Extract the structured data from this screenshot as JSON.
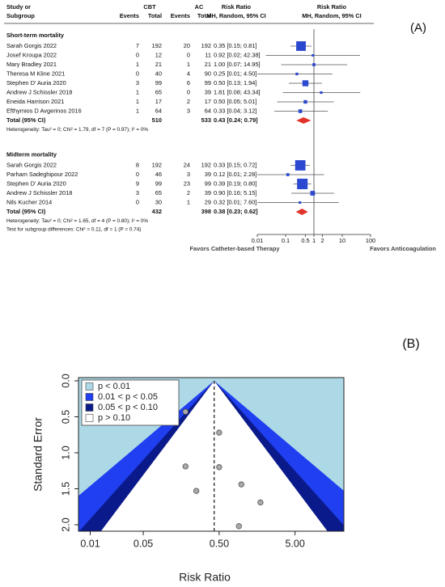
{
  "chart_data": [
    {
      "type": "forest",
      "panel_label": "(A)",
      "headers": {
        "study": "Study or",
        "subgroup": "Subgroup",
        "cbt": "CBT",
        "ac": "AC",
        "events": "Events",
        "total": "Total",
        "rr": "Risk Ratio",
        "method": "MH, Random, 95% CI"
      },
      "groups": [
        {
          "name": "Short-term mortality",
          "studies": [
            {
              "name": "Sarah Gorgis 2022",
              "cbt_events": 7,
              "cbt_total": 192,
              "ac_events": 20,
              "ac_total": 192,
              "rr": 0.35,
              "ci_lower": 0.15,
              "ci_upper": 0.81,
              "label": "0.35 [0.15; 0.81]"
            },
            {
              "name": "Josef Kroupa 2022",
              "cbt_events": 0,
              "cbt_total": 12,
              "ac_events": 0,
              "ac_total": 11,
              "rr": 0.92,
              "ci_lower": 0.02,
              "ci_upper": 42.38,
              "label": "0.92 [0.02; 42.38]"
            },
            {
              "name": "Mary Bradley 2021",
              "cbt_events": 1,
              "cbt_total": 21,
              "ac_events": 1,
              "ac_total": 21,
              "rr": 1.0,
              "ci_lower": 0.07,
              "ci_upper": 14.95,
              "label": "1.00 [0.07; 14.95]"
            },
            {
              "name": "Theresa M Kline 2021",
              "cbt_events": 0,
              "cbt_total": 40,
              "ac_events": 4,
              "ac_total": 90,
              "rr": 0.25,
              "ci_lower": 0.01,
              "ci_upper": 4.5,
              "label": "0.25 [0.01; 4.50]"
            },
            {
              "name": "Stephen D' Auria 2020",
              "cbt_events": 3,
              "cbt_total": 99,
              "ac_events": 6,
              "ac_total": 99,
              "rr": 0.5,
              "ci_lower": 0.13,
              "ci_upper": 1.94,
              "label": "0.50 [0.13; 1.94]"
            },
            {
              "name": "Andrew J Schissler 2018",
              "cbt_events": 1,
              "cbt_total": 65,
              "ac_events": 0,
              "ac_total": 39,
              "rr": 1.81,
              "ci_lower": 0.08,
              "ci_upper": 43.34,
              "label": "1.81 [0.08; 43.34]"
            },
            {
              "name": "Eneida Harrison 2021",
              "cbt_events": 1,
              "cbt_total": 17,
              "ac_events": 2,
              "ac_total": 17,
              "rr": 0.5,
              "ci_lower": 0.05,
              "ci_upper": 5.01,
              "label": "0.50 [0.05; 5.01]"
            },
            {
              "name": "Efthymios D Avgerinos 2016",
              "cbt_events": 1,
              "cbt_total": 64,
              "ac_events": 3,
              "ac_total": 64,
              "rr": 0.33,
              "ci_lower": 0.04,
              "ci_upper": 3.12,
              "label": "0.33 [0.04; 3.12]"
            }
          ],
          "total": {
            "name": "Total (95% CI)",
            "cbt_total": 510,
            "ac_total": 533,
            "rr": 0.43,
            "ci_lower": 0.24,
            "ci_upper": 0.79,
            "label": "0.43 [0.24; 0.79]"
          },
          "heterogeneity": "Heterogeneity: Tau² = 0; Chi² = 1.79, df = 7 (P = 0.97); I² = 0%"
        },
        {
          "name": "Midterm mortality",
          "studies": [
            {
              "name": "Sarah Gorgis 2022",
              "cbt_events": 8,
              "cbt_total": 192,
              "ac_events": 24,
              "ac_total": 192,
              "rr": 0.33,
              "ci_lower": 0.15,
              "ci_upper": 0.72,
              "label": "0.33 [0.15; 0.72]"
            },
            {
              "name": "Parham Sadeghipour 2022",
              "cbt_events": 0,
              "cbt_total": 46,
              "ac_events": 3,
              "ac_total": 39,
              "rr": 0.12,
              "ci_lower": 0.01,
              "ci_upper": 2.28,
              "label": "0.12 [0.01; 2.28]"
            },
            {
              "name": "Stephen D' Auria 2020",
              "cbt_events": 9,
              "cbt_total": 99,
              "ac_events": 23,
              "ac_total": 99,
              "rr": 0.39,
              "ci_lower": 0.19,
              "ci_upper": 0.8,
              "label": "0.39 [0.19; 0.80]"
            },
            {
              "name": "Andrew J Schissler 2018",
              "cbt_events": 3,
              "cbt_total": 65,
              "ac_events": 2,
              "ac_total": 39,
              "rr": 0.9,
              "ci_lower": 0.16,
              "ci_upper": 5.15,
              "label": "0.90 [0.16; 5.15]"
            },
            {
              "name": "Nils Kucher 2014",
              "cbt_events": 0,
              "cbt_total": 30,
              "ac_events": 1,
              "ac_total": 29,
              "rr": 0.32,
              "ci_lower": 0.01,
              "ci_upper": 7.6,
              "label": "0.32 [0.01; 7.60]"
            }
          ],
          "total": {
            "name": "Total (95% CI)",
            "cbt_total": 432,
            "ac_total": 398,
            "rr": 0.38,
            "ci_lower": 0.23,
            "ci_upper": 0.62,
            "label": "0.38 [0.23; 0.62]"
          },
          "heterogeneity": "Heterogeneity: Tau² = 0; Chi² = 1.65, df = 4 (P = 0.80); I² = 0%"
        }
      ],
      "subgroup_test": "Test for subgroup differences: Chi² = 0.11, df = 1 (P = 0.74)",
      "log_scale": true,
      "xlim": [
        0.01,
        100
      ],
      "xticks": [
        0.01,
        0.1,
        0.5,
        1,
        2,
        10,
        100
      ],
      "null_line": 1,
      "left_label": "Favors Catheter-based Therapy",
      "right_label": "Favors Anticoagulation",
      "square_color": "#2b48d0",
      "diamond_color": "#e2332b"
    },
    {
      "type": "funnel",
      "panel_label": "(B)",
      "xlabel": "Risk Ratio",
      "ylabel": "Standard Error",
      "log_scale": true,
      "xlim": [
        0.007,
        22
      ],
      "xticks": [
        0.01,
        0.05,
        {
          "value": 0.5,
          "label": "0.50"
        },
        {
          "value": 5,
          "label": "5.00"
        }
      ],
      "ylim": [
        -0.045,
        2.09
      ],
      "y_reversed": true,
      "yticks": [
        {
          "value": 0,
          "label": "0.0"
        },
        {
          "value": 0.5,
          "label": "0.5"
        },
        {
          "value": 1,
          "label": "1.0"
        },
        {
          "value": 1.5,
          "label": "1.5"
        },
        {
          "value": 2,
          "label": "2.0"
        }
      ],
      "center": 0.43,
      "p_levels": [
        0.01,
        0.05,
        0.1
      ],
      "contours": [
        {
          "label": "p < 0.01",
          "color": "#add8e6"
        },
        {
          "label": "0.01 < p < 0.05",
          "color": "#1f3ff0"
        },
        {
          "label": "0.05 < p < 0.10",
          "color": "#0b1a8a"
        },
        {
          "label": "p > 0.10",
          "color": "#ffffff"
        }
      ],
      "legend": "upper left",
      "point_color": "#a9a9a9",
      "x": [
        0.18,
        0.5,
        0.18,
        0.5,
        0.98,
        0.25,
        1.75,
        0.91
      ],
      "values": [
        0.43,
        0.72,
        1.19,
        1.2,
        1.44,
        1.53,
        1.69,
        2.02
      ]
    }
  ]
}
